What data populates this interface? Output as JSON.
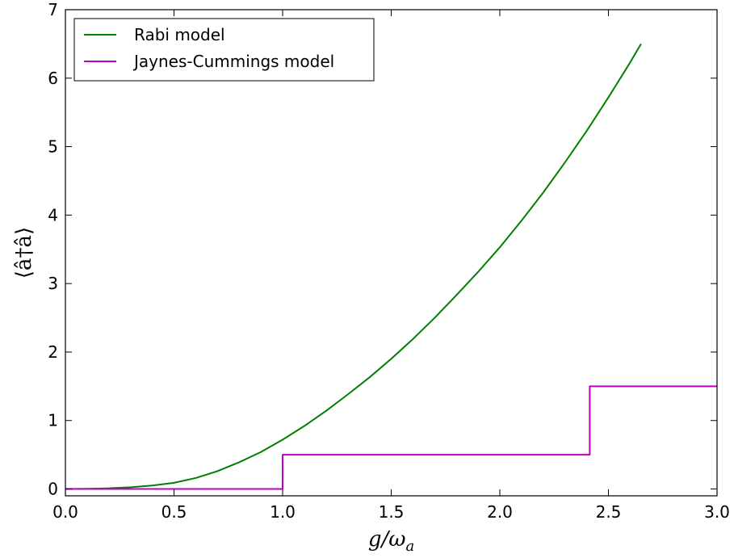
{
  "chart_data": {
    "type": "line",
    "xlabel": "g/ω",
    "xlabel_sub": "a",
    "ylabel": "⟨â†â⟩",
    "xlim": [
      0.0,
      3.0
    ],
    "ylim": [
      -0.1,
      7.0
    ],
    "x_ticks": [
      "0.0",
      "0.5",
      "1.0",
      "1.5",
      "2.0",
      "2.5",
      "3.0"
    ],
    "x_tick_values": [
      0.0,
      0.5,
      1.0,
      1.5,
      2.0,
      2.5,
      3.0
    ],
    "y_ticks": [
      "0",
      "1",
      "2",
      "3",
      "4",
      "5",
      "6",
      "7"
    ],
    "y_tick_values": [
      0,
      1,
      2,
      3,
      4,
      5,
      6,
      7
    ],
    "grid": false,
    "legend_position": "top-left",
    "series": [
      {
        "name": "Rabi model",
        "color": "#008000",
        "x": [
          0.0,
          0.1,
          0.2,
          0.3,
          0.4,
          0.5,
          0.6,
          0.7,
          0.8,
          0.9,
          1.0,
          1.1,
          1.2,
          1.3,
          1.4,
          1.5,
          1.6,
          1.7,
          1.8,
          1.9,
          2.0,
          2.1,
          2.2,
          2.3,
          2.4,
          2.5,
          2.6,
          2.65
        ],
        "y": [
          0.0,
          0.003,
          0.01,
          0.025,
          0.05,
          0.09,
          0.16,
          0.26,
          0.39,
          0.54,
          0.72,
          0.92,
          1.14,
          1.38,
          1.63,
          1.9,
          2.19,
          2.5,
          2.83,
          3.17,
          3.53,
          3.92,
          4.33,
          4.77,
          5.23,
          5.72,
          6.23,
          6.5
        ]
      },
      {
        "name": "Jaynes-Cummings model",
        "color": "#bf00bf",
        "x": [
          0.0,
          1.0,
          1.0,
          2.414,
          2.414,
          3.0
        ],
        "y": [
          0.0,
          0.0,
          0.5,
          0.5,
          1.5,
          1.5
        ]
      }
    ]
  }
}
